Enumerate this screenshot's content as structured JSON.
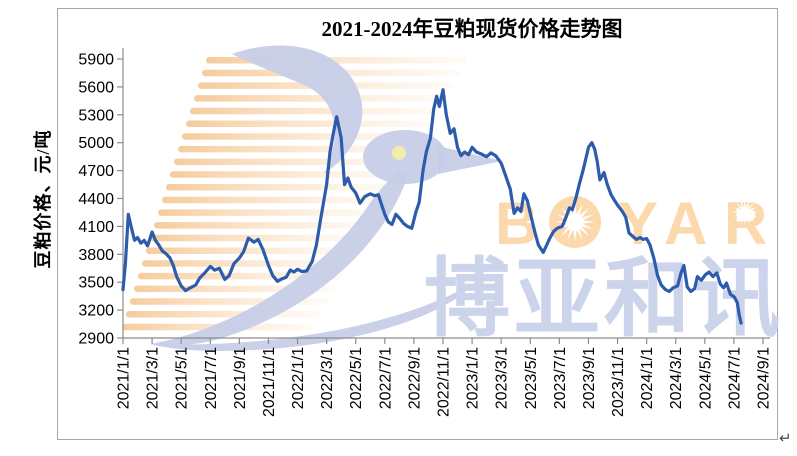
{
  "frame": {
    "paragraph_mark": "↵"
  },
  "chart": {
    "title": "2021-2024年豆粕现货价格走势图",
    "y_axis_title": "豆粕价格、元/吨",
    "watermark": {
      "logo_text": "BOYAR",
      "letters": [
        "B",
        "Y",
        "A",
        "R"
      ],
      "cn_text": "博亚和讯",
      "logo_color": "#fbd9ad",
      "cn_color": "#ccd4ec",
      "bird_color": "#c6cee7",
      "eye_color": "#f3eda6",
      "stripe_color": "#f5c48c"
    }
  },
  "chart_data": {
    "type": "line",
    "title": "2021-2024年豆粕现货价格走势图",
    "xlabel": "",
    "ylabel": "豆粕价格、元/吨",
    "ylim": [
      2900,
      5900
    ],
    "y_tick_step": 300,
    "y_ticks": [
      5900,
      5600,
      5300,
      5000,
      4700,
      4400,
      4100,
      3800,
      3500,
      3200,
      2900
    ],
    "x_ticks": [
      "2021/1/1",
      "2021/3/1",
      "2021/5/1",
      "2021/7/1",
      "2021/9/1",
      "2021/11/1",
      "2022/1/1",
      "2022/3/1",
      "2022/5/1",
      "2022/7/1",
      "2022/9/1",
      "2022/11/1",
      "2023/1/1",
      "2023/3/1",
      "2023/5/1",
      "2023/7/1",
      "2023/9/1",
      "2023/11/1",
      "2024/1/1",
      "2024/3/1",
      "2024/5/1",
      "2024/7/1",
      "2024/9/1"
    ],
    "grid": false,
    "legend_position": "none",
    "line_color": "#2d5cac",
    "series": [
      {
        "name": "豆粕现货价格",
        "unit": "元/吨",
        "points": [
          [
            "2021/1/1",
            3420
          ],
          [
            "2021/1/6",
            3700
          ],
          [
            "2021/1/12",
            4230
          ],
          [
            "2021/1/18",
            4100
          ],
          [
            "2021/1/25",
            3950
          ],
          [
            "2021/2/1",
            3980
          ],
          [
            "2021/2/8",
            3920
          ],
          [
            "2021/2/15",
            3950
          ],
          [
            "2021/2/22",
            3890
          ],
          [
            "2021/3/1",
            4040
          ],
          [
            "2021/3/8",
            3950
          ],
          [
            "2021/3/15",
            3900
          ],
          [
            "2021/3/22",
            3840
          ],
          [
            "2021/4/1",
            3800
          ],
          [
            "2021/4/8",
            3760
          ],
          [
            "2021/4/15",
            3680
          ],
          [
            "2021/4/22",
            3560
          ],
          [
            "2021/5/1",
            3460
          ],
          [
            "2021/5/10",
            3410
          ],
          [
            "2021/5/20",
            3440
          ],
          [
            "2021/6/1",
            3470
          ],
          [
            "2021/6/10",
            3550
          ],
          [
            "2021/6/20",
            3600
          ],
          [
            "2021/7/1",
            3670
          ],
          [
            "2021/7/10",
            3630
          ],
          [
            "2021/7/20",
            3650
          ],
          [
            "2021/8/1",
            3530
          ],
          [
            "2021/8/10",
            3570
          ],
          [
            "2021/8/20",
            3700
          ],
          [
            "2021/9/1",
            3760
          ],
          [
            "2021/9/10",
            3830
          ],
          [
            "2021/9/20",
            3975
          ],
          [
            "2021/10/1",
            3930
          ],
          [
            "2021/10/10",
            3960
          ],
          [
            "2021/10/20",
            3850
          ],
          [
            "2021/11/1",
            3680
          ],
          [
            "2021/11/10",
            3570
          ],
          [
            "2021/11/20",
            3510
          ],
          [
            "2021/11/27",
            3530
          ],
          [
            "2021/12/8",
            3555
          ],
          [
            "2021/12/16",
            3630
          ],
          [
            "2021/12/24",
            3610
          ],
          [
            "2022/1/1",
            3640
          ],
          [
            "2022/1/10",
            3615
          ],
          [
            "2022/1/20",
            3620
          ],
          [
            "2022/2/1",
            3720
          ],
          [
            "2022/2/10",
            3900
          ],
          [
            "2022/2/18",
            4150
          ],
          [
            "2022/3/1",
            4550
          ],
          [
            "2022/3/8",
            4900
          ],
          [
            "2022/3/15",
            5100
          ],
          [
            "2022/3/22",
            5280
          ],
          [
            "2022/4/1",
            5050
          ],
          [
            "2022/4/8",
            4550
          ],
          [
            "2022/4/15",
            4620
          ],
          [
            "2022/4/22",
            4520
          ],
          [
            "2022/5/1",
            4460
          ],
          [
            "2022/5/10",
            4350
          ],
          [
            "2022/5/20",
            4420
          ],
          [
            "2022/6/1",
            4450
          ],
          [
            "2022/6/10",
            4430
          ],
          [
            "2022/6/18",
            4440
          ],
          [
            "2022/6/25",
            4330
          ],
          [
            "2022/7/1",
            4230
          ],
          [
            "2022/7/8",
            4150
          ],
          [
            "2022/7/16",
            4120
          ],
          [
            "2022/7/24",
            4230
          ],
          [
            "2022/8/1",
            4190
          ],
          [
            "2022/8/10",
            4130
          ],
          [
            "2022/8/18",
            4100
          ],
          [
            "2022/8/27",
            4080
          ],
          [
            "2022/9/5",
            4250
          ],
          [
            "2022/9/12",
            4360
          ],
          [
            "2022/9/20",
            4700
          ],
          [
            "2022/9/27",
            4900
          ],
          [
            "2022/10/5",
            5050
          ],
          [
            "2022/10/12",
            5360
          ],
          [
            "2022/10/18",
            5500
          ],
          [
            "2022/10/24",
            5390
          ],
          [
            "2022/11/1",
            5570
          ],
          [
            "2022/11/8",
            5300
          ],
          [
            "2022/11/16",
            5100
          ],
          [
            "2022/11/24",
            5150
          ],
          [
            "2022/12/1",
            4950
          ],
          [
            "2022/12/8",
            4860
          ],
          [
            "2022/12/16",
            4900
          ],
          [
            "2022/12/24",
            4870
          ],
          [
            "2023/1/1",
            4950
          ],
          [
            "2023/1/10",
            4900
          ],
          [
            "2023/1/20",
            4880
          ],
          [
            "2023/2/1",
            4850
          ],
          [
            "2023/2/10",
            4890
          ],
          [
            "2023/2/20",
            4860
          ],
          [
            "2023/3/1",
            4780
          ],
          [
            "2023/3/10",
            4650
          ],
          [
            "2023/3/20",
            4500
          ],
          [
            "2023/3/28",
            4240
          ],
          [
            "2023/4/5",
            4300
          ],
          [
            "2023/4/12",
            4260
          ],
          [
            "2023/4/18",
            4450
          ],
          [
            "2023/4/25",
            4380
          ],
          [
            "2023/5/3",
            4200
          ],
          [
            "2023/5/10",
            4050
          ],
          [
            "2023/5/18",
            3900
          ],
          [
            "2023/5/28",
            3820
          ],
          [
            "2023/6/5",
            3900
          ],
          [
            "2023/6/12",
            3980
          ],
          [
            "2023/6/20",
            4050
          ],
          [
            "2023/6/27",
            4080
          ],
          [
            "2023/7/7",
            4100
          ],
          [
            "2023/7/15",
            4200
          ],
          [
            "2023/7/22",
            4300
          ],
          [
            "2023/7/28",
            4280
          ],
          [
            "2023/8/5",
            4400
          ],
          [
            "2023/8/12",
            4550
          ],
          [
            "2023/8/20",
            4700
          ],
          [
            "2023/8/27",
            4850
          ],
          [
            "2023/9/1",
            4950
          ],
          [
            "2023/9/8",
            5000
          ],
          [
            "2023/9/14",
            4930
          ],
          [
            "2023/9/19",
            4805
          ],
          [
            "2023/9/25",
            4600
          ],
          [
            "2023/10/3",
            4680
          ],
          [
            "2023/10/10",
            4550
          ],
          [
            "2023/10/18",
            4440
          ],
          [
            "2023/10/25",
            4380
          ],
          [
            "2023/11/1",
            4330
          ],
          [
            "2023/11/10",
            4270
          ],
          [
            "2023/11/18",
            4200
          ],
          [
            "2023/11/25",
            4030
          ],
          [
            "2023/12/3",
            3990
          ],
          [
            "2023/12/10",
            3960
          ],
          [
            "2023/12/18",
            3980
          ],
          [
            "2023/12/24",
            3960
          ],
          [
            "2024/1/1",
            3970
          ],
          [
            "2024/1/8",
            3900
          ],
          [
            "2024/1/16",
            3760
          ],
          [
            "2024/1/24",
            3570
          ],
          [
            "2024/2/1",
            3470
          ],
          [
            "2024/2/10",
            3420
          ],
          [
            "2024/2/18",
            3400
          ],
          [
            "2024/2/26",
            3440
          ],
          [
            "2024/3/5",
            3460
          ],
          [
            "2024/3/12",
            3600
          ],
          [
            "2024/3/18",
            3680
          ],
          [
            "2024/3/25",
            3450
          ],
          [
            "2024/4/2",
            3400
          ],
          [
            "2024/4/10",
            3430
          ],
          [
            "2024/4/16",
            3560
          ],
          [
            "2024/4/24",
            3520
          ],
          [
            "2024/5/2",
            3580
          ],
          [
            "2024/5/10",
            3610
          ],
          [
            "2024/5/18",
            3560
          ],
          [
            "2024/5/26",
            3600
          ],
          [
            "2024/6/3",
            3480
          ],
          [
            "2024/6/10",
            3440
          ],
          [
            "2024/6/16",
            3490
          ],
          [
            "2024/6/24",
            3370
          ],
          [
            "2024/7/2",
            3340
          ],
          [
            "2024/7/8",
            3280
          ],
          [
            "2024/7/12",
            3150
          ],
          [
            "2024/7/16",
            3060
          ]
        ]
      }
    ]
  }
}
